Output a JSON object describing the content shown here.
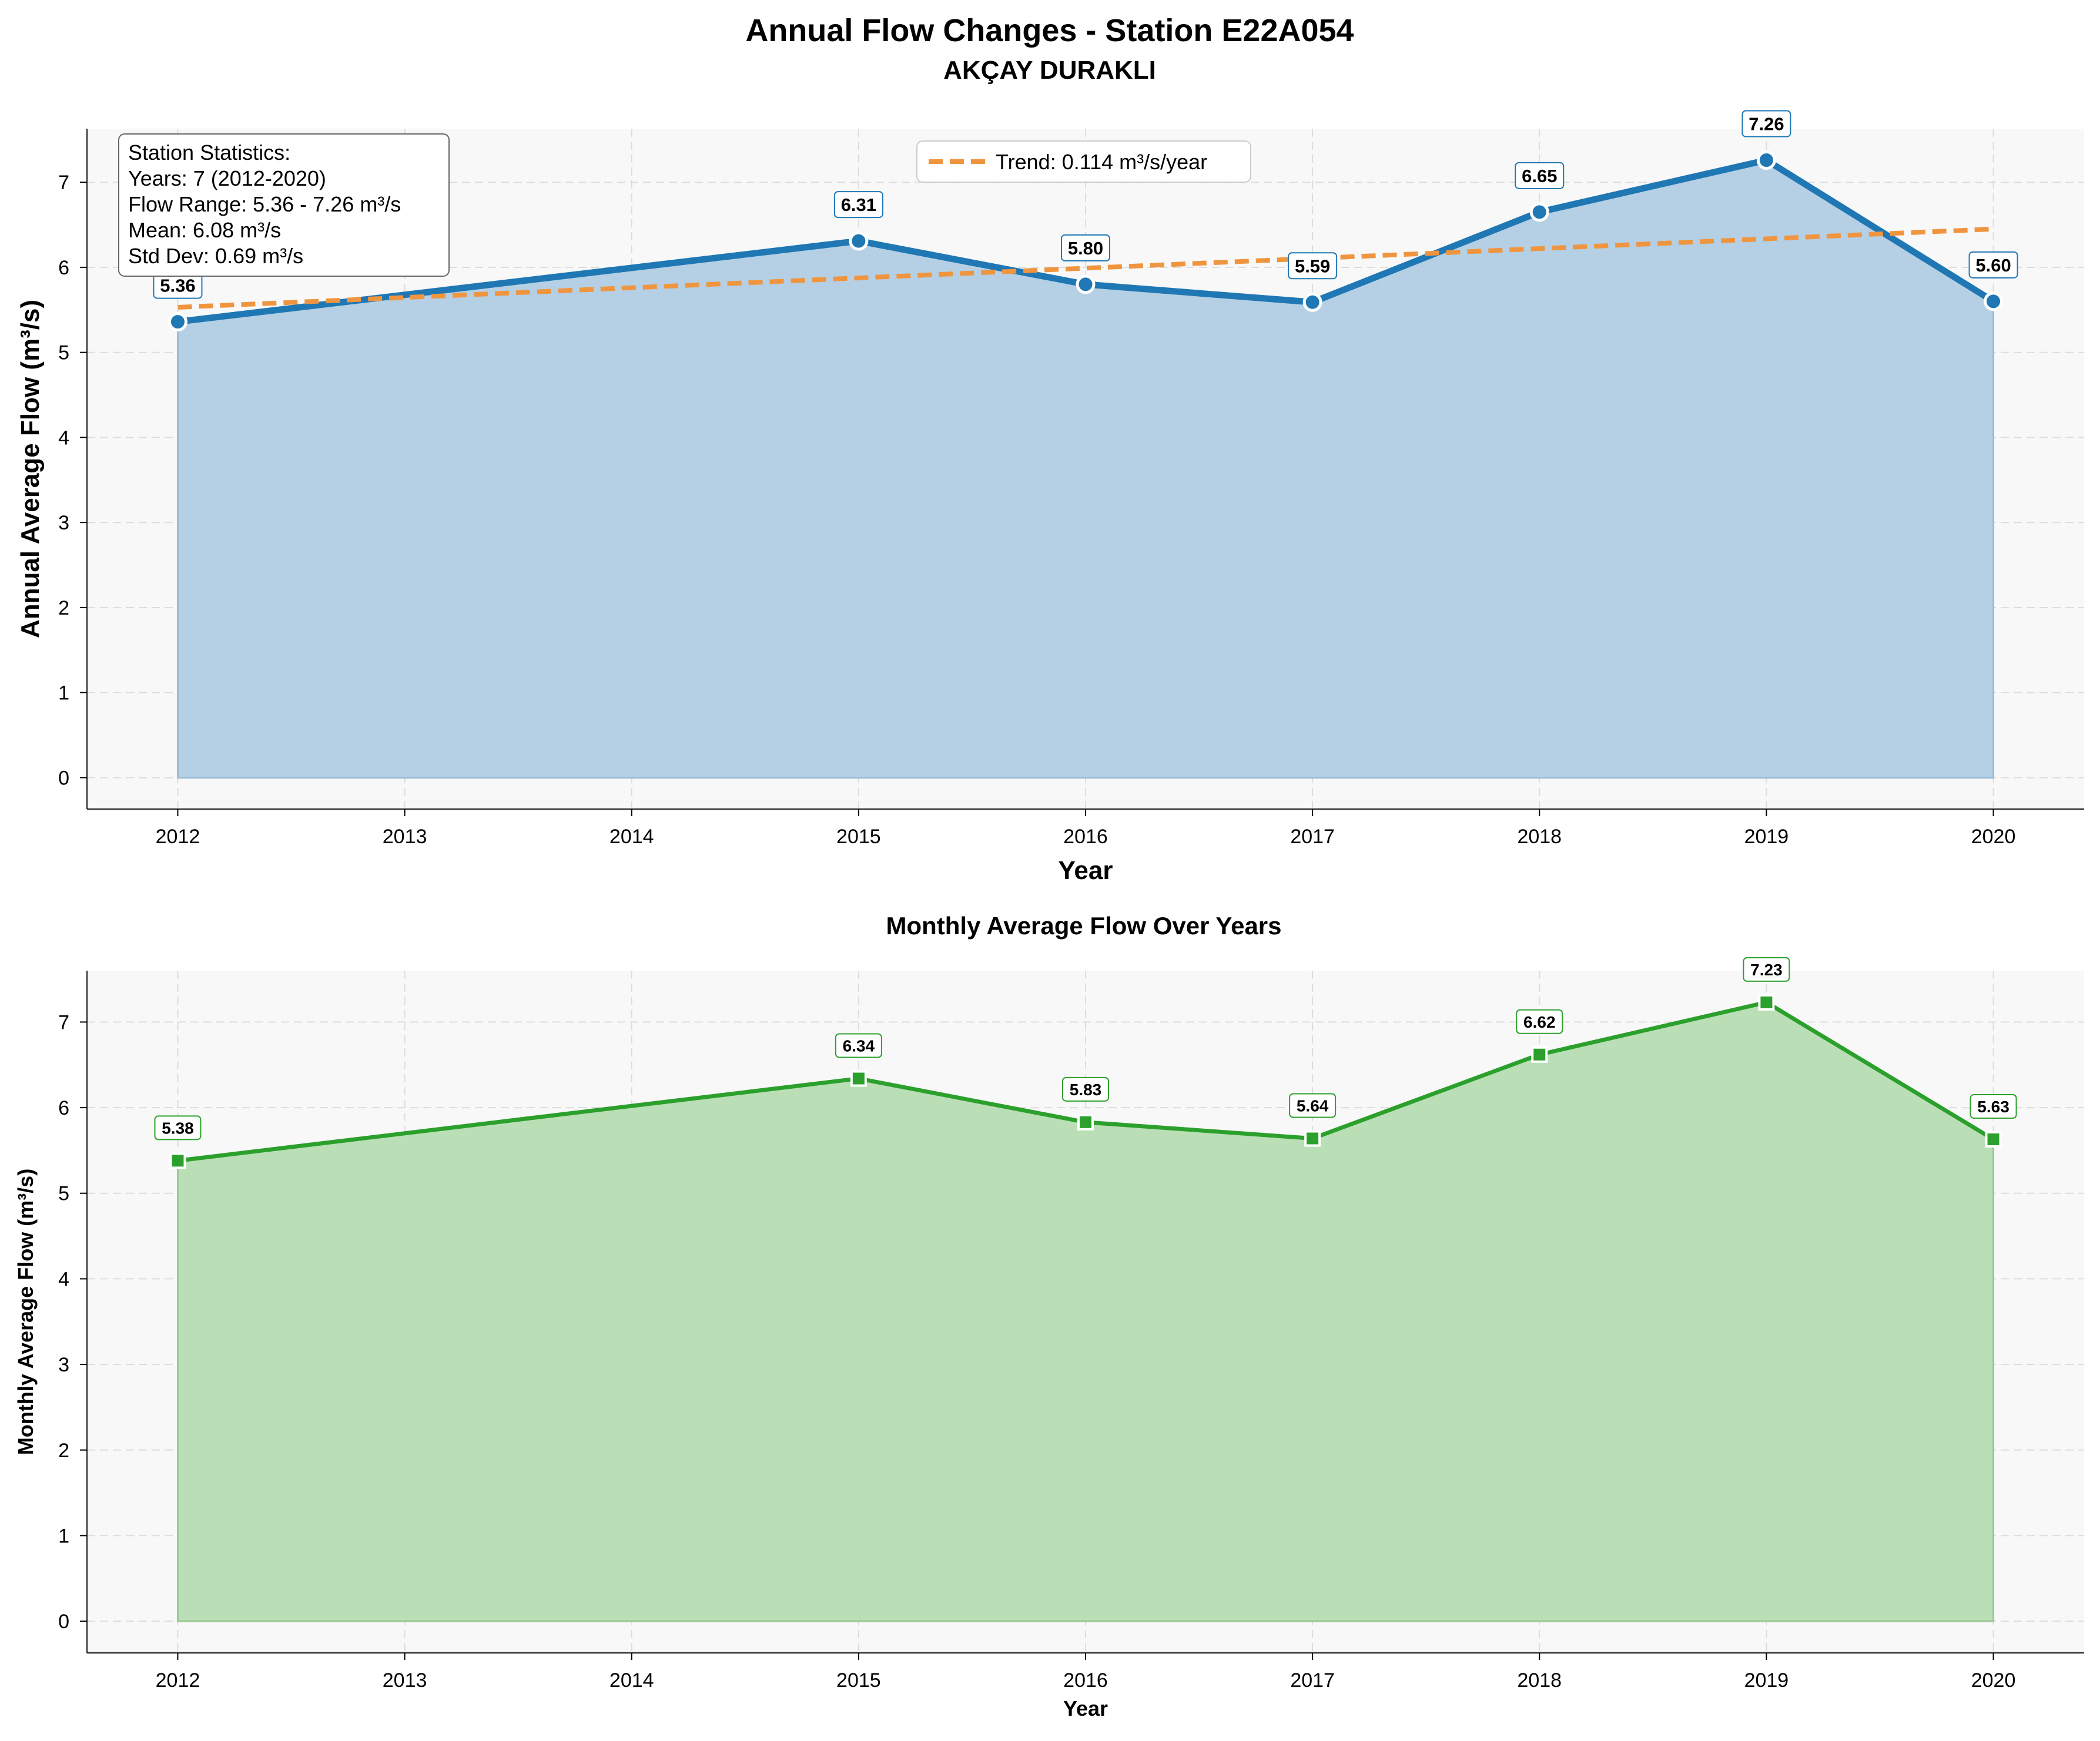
{
  "title": "Annual Flow Changes - Station E22A054",
  "subtitle": "AKÇAY  DURAKLI",
  "stats": {
    "lines": [
      "Station Statistics:",
      "Years: 7 (2012-2020)",
      "Flow Range: 5.36 - 7.26 m³/s",
      "Mean: 6.08 m³/s",
      "Std Dev: 0.69 m³/s"
    ]
  },
  "legend": {
    "trend_label": "Trend: 0.114 m³/s/year"
  },
  "colors": {
    "annual": "#1f77b4",
    "annual_fill": "#b5d0e4",
    "trend": "#ff7f0e",
    "monthly": "#2ca02c",
    "monthly_fill": "#badfb7",
    "panel_bg": "#f8f8f8",
    "grid": "#dddddd"
  },
  "chart_data": [
    {
      "type": "area",
      "title": "",
      "xlabel": "Year",
      "ylabel": "Annual Average Flow (m³/s)",
      "x": [
        2012,
        2015,
        2016,
        2017,
        2018,
        2019,
        2020
      ],
      "xticks": [
        "2012",
        "2013",
        "2014",
        "2015",
        "2016",
        "2017",
        "2018",
        "2019",
        "2020"
      ],
      "xlim": [
        2011.6,
        2020.4
      ],
      "ylim": [
        -0.37,
        7.63
      ],
      "yticks": [
        "0",
        "1",
        "2",
        "3",
        "4",
        "5",
        "6",
        "7"
      ],
      "grid": true,
      "legend_position": "top-center",
      "series": [
        {
          "values": [
            5.36,
            6.31,
            5.8,
            5.59,
            6.65,
            7.26,
            5.6
          ],
          "labels": [
            "5.36",
            "6.31",
            "5.80",
            "5.59",
            "6.65",
            "7.26",
            "5.60"
          ],
          "marker": "circle"
        },
        {
          "name": "Trend: 0.114 m³/s/year",
          "type": "line",
          "style": "dashed",
          "x": [
            2012,
            2020
          ],
          "values": [
            5.53,
            6.45
          ]
        }
      ]
    },
    {
      "type": "area",
      "title": "Monthly Average Flow Over Years",
      "xlabel": "Year",
      "ylabel": "Monthly Average Flow (m³/s)",
      "x": [
        2012,
        2015,
        2016,
        2017,
        2018,
        2019,
        2020
      ],
      "xticks": [
        "2012",
        "2013",
        "2014",
        "2015",
        "2016",
        "2017",
        "2018",
        "2019",
        "2020"
      ],
      "xlim": [
        2011.6,
        2020.4
      ],
      "ylim": [
        -0.37,
        7.6
      ],
      "yticks": [
        "0",
        "1",
        "2",
        "3",
        "4",
        "5",
        "6",
        "7"
      ],
      "grid": true,
      "series": [
        {
          "values": [
            5.38,
            6.34,
            5.83,
            5.64,
            6.62,
            7.23,
            5.63
          ],
          "labels": [
            "5.38",
            "6.34",
            "5.83",
            "5.64",
            "6.62",
            "7.23",
            "5.63"
          ],
          "marker": "square"
        }
      ]
    }
  ]
}
